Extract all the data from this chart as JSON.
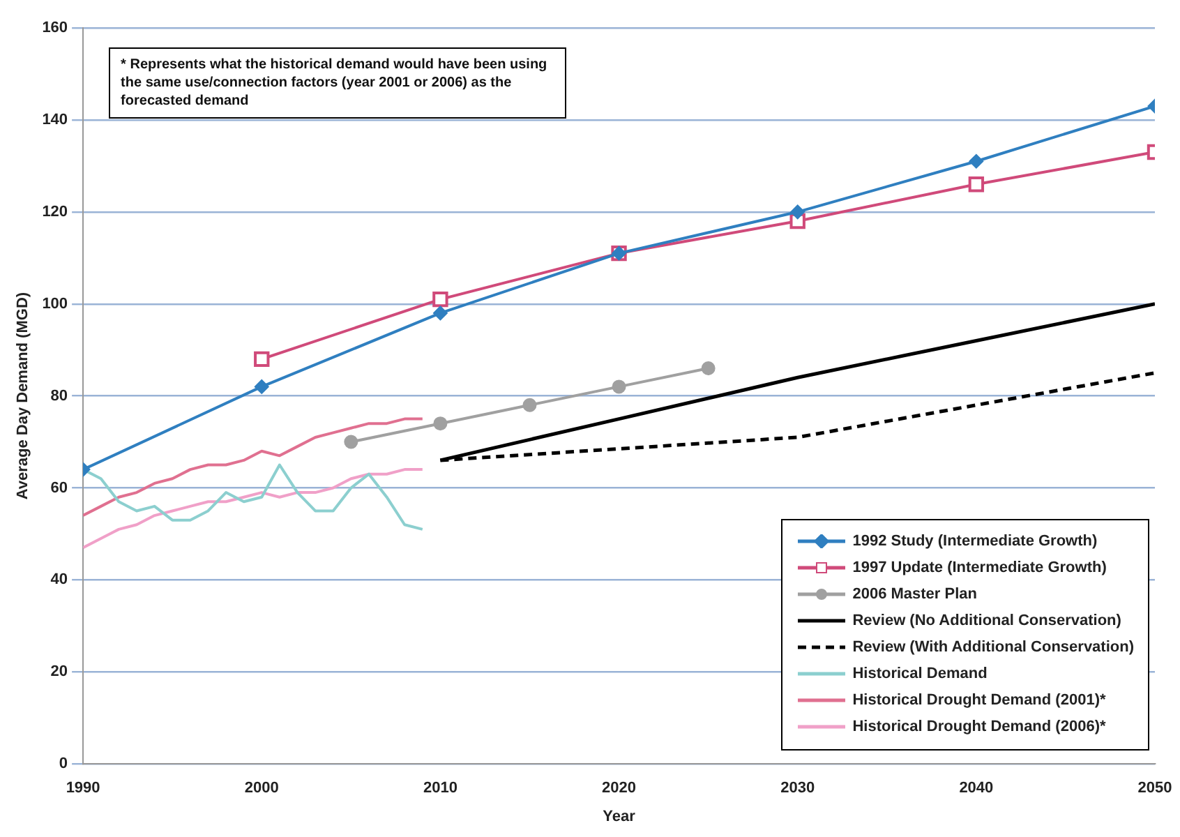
{
  "chart_data": {
    "type": "line",
    "xlabel": "Year",
    "ylabel": "Average Day Demand (MGD)",
    "xlim": [
      1990,
      2050
    ],
    "xticks": [
      1990,
      2000,
      2010,
      2020,
      2030,
      2040,
      2050
    ],
    "ylim": [
      0,
      160
    ],
    "yticks": [
      0,
      20,
      40,
      60,
      80,
      100,
      120,
      140,
      160
    ],
    "grid": "y",
    "legend": "bottom right",
    "annotations": [
      "* Represents what the historical demand would have been using the same use/connection factors (year 2001 or 2006) as the forecasted demand"
    ],
    "series": [
      {
        "name": "1992 Study (Intermediate Growth)",
        "color": "#2f7fc0",
        "marker": "diamond",
        "x": [
          1990,
          2000,
          2010,
          2020,
          2030,
          2040,
          2050
        ],
        "values": [
          64,
          82,
          98,
          111,
          120,
          131,
          143
        ]
      },
      {
        "name": "1997 Update (Intermediate Growth)",
        "color": "#d04a7a",
        "marker": "square",
        "x": [
          2000,
          2010,
          2020,
          2030,
          2040,
          2050
        ],
        "values": [
          88,
          101,
          111,
          118,
          126,
          133
        ]
      },
      {
        "name": "2006 Master Plan",
        "color": "#a0a0a0",
        "marker": "circle",
        "x": [
          2005,
          2010,
          2015,
          2020,
          2025
        ],
        "values": [
          70,
          74,
          78,
          82,
          86
        ]
      },
      {
        "name": "Review (No Additional Conservation)",
        "color": "#000000",
        "x": [
          2010,
          2020,
          2030,
          2040,
          2050
        ],
        "values": [
          66,
          75,
          84,
          92,
          100
        ]
      },
      {
        "name": "Review (With Additional Conservation)",
        "color": "#000000",
        "line_style": "dashed",
        "x": [
          2010,
          2030,
          2040,
          2050
        ],
        "values": [
          66,
          71,
          78,
          85
        ]
      },
      {
        "name": "Historical Demand",
        "color": "#8ccfcf",
        "x": [
          1990,
          1991,
          1992,
          1993,
          1994,
          1995,
          1996,
          1997,
          1998,
          1999,
          2000,
          2001,
          2002,
          2003,
          2004,
          2005,
          2006,
          2007,
          2008,
          2009
        ],
        "values": [
          64,
          62,
          57,
          55,
          56,
          53,
          53,
          55,
          59,
          57,
          58,
          65,
          59,
          55,
          55,
          60,
          63,
          58,
          52,
          51
        ]
      },
      {
        "name": "Historical Drought Demand (2001)*",
        "color": "#e07090",
        "x": [
          1990,
          1991,
          1992,
          1993,
          1994,
          1995,
          1996,
          1997,
          1998,
          1999,
          2000,
          2001,
          2002,
          2003,
          2004,
          2005,
          2006,
          2007,
          2008,
          2009
        ],
        "values": [
          54,
          56,
          58,
          59,
          61,
          62,
          64,
          65,
          65,
          66,
          68,
          67,
          69,
          71,
          72,
          73,
          74,
          74,
          75,
          75
        ]
      },
      {
        "name": "Historical Drought Demand (2006)*",
        "color": "#f0a0c8",
        "x": [
          1990,
          1991,
          1992,
          1993,
          1994,
          1995,
          1996,
          1997,
          1998,
          1999,
          2000,
          2001,
          2002,
          2003,
          2004,
          2005,
          2006,
          2007,
          2008,
          2009
        ],
        "values": [
          47,
          49,
          51,
          52,
          54,
          55,
          56,
          57,
          57,
          58,
          59,
          58,
          59,
          59,
          60,
          62,
          63,
          63,
          64,
          64
        ]
      }
    ]
  }
}
